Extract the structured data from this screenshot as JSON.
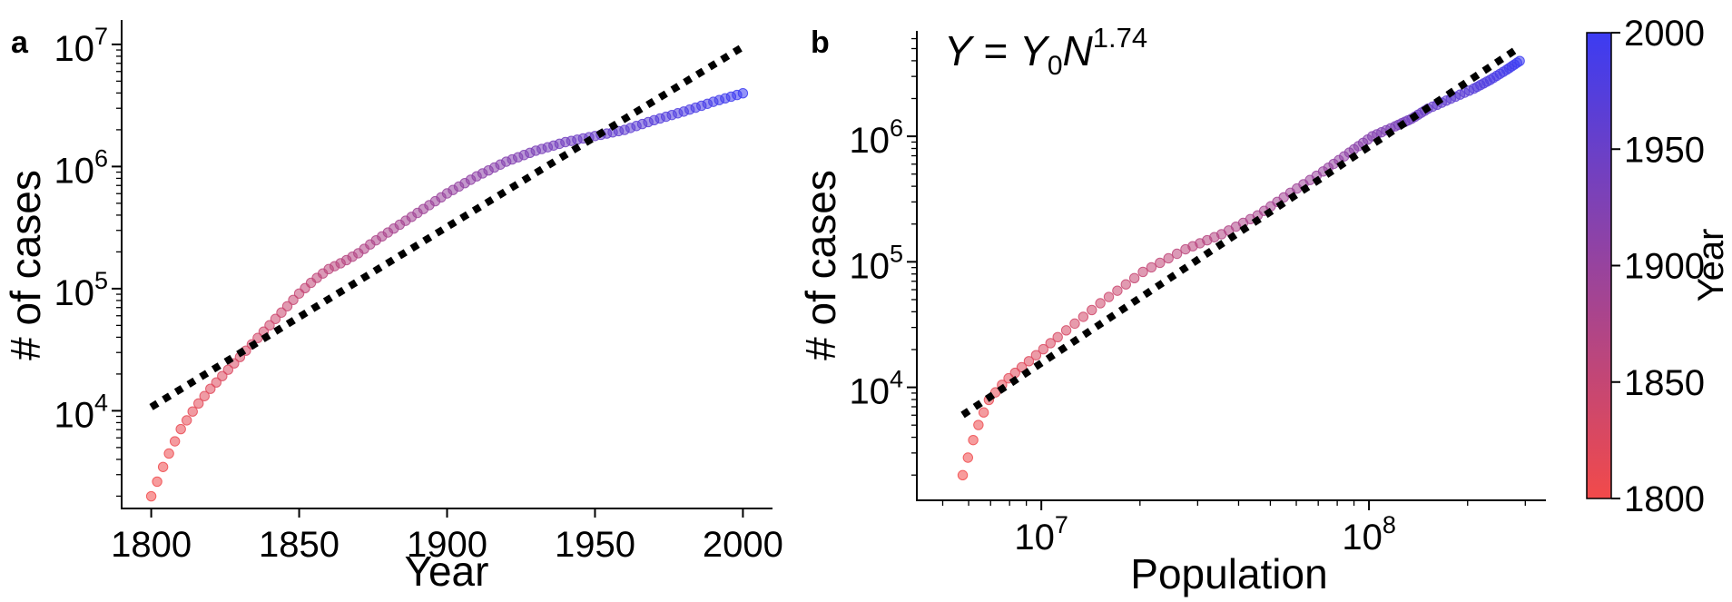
{
  "chart_data": [
    {
      "panel": "a",
      "type": "scatter",
      "title": "",
      "xlabel": "Year",
      "ylabel": "# of cases",
      "x_scale": "linear",
      "y_scale": "log",
      "xlim": [
        1790,
        2010
      ],
      "ylim_log10": [
        3.2,
        7.2
      ],
      "x_ticks": [
        {
          "value": 1800,
          "label": "1800"
        },
        {
          "value": 1850,
          "label": "1850"
        },
        {
          "value": 1900,
          "label": "1900"
        },
        {
          "value": 1950,
          "label": "1950"
        },
        {
          "value": 2000,
          "label": "2000"
        }
      ],
      "y_ticks": [
        {
          "log10": 4,
          "base": "10",
          "exp": "4"
        },
        {
          "log10": 5,
          "base": "10",
          "exp": "5"
        },
        {
          "log10": 6,
          "base": "10",
          "exp": "6"
        },
        {
          "log10": 7,
          "base": "10",
          "exp": "7"
        }
      ],
      "series": [
        {
          "name": "cases",
          "x_start": 1800,
          "x_end": 2000,
          "x_step": 2,
          "curve": {
            "x": [
              1800,
              1805,
              1810,
              1815,
              1820,
              1825,
              1830,
              1835,
              1840,
              1845,
              1850,
              1855,
              1860,
              1865,
              1870,
              1875,
              1880,
              1890,
              1900,
              1910,
              1920,
              1930,
              1940,
              1950,
              1960,
              1970,
              1980,
              1990,
              2000
            ],
            "log10_y": [
              3.3,
              3.6,
              3.85,
              4.03,
              4.18,
              4.31,
              4.44,
              4.57,
              4.7,
              4.83,
              4.96,
              5.07,
              5.16,
              5.22,
              5.29,
              5.38,
              5.46,
              5.62,
              5.78,
              5.92,
              6.04,
              6.13,
              6.2,
              6.25,
              6.3,
              6.38,
              6.45,
              6.53,
              6.6
            ]
          }
        },
        {
          "name": "fit",
          "style": "dotted",
          "x": [
            1800,
            2000
          ],
          "log10_y": [
            4.03,
            6.98
          ]
        }
      ]
    },
    {
      "panel": "b",
      "type": "scatter",
      "title": "",
      "xlabel": "Population",
      "ylabel": "# of cases",
      "x_scale": "log",
      "y_scale": "log",
      "xlim_log10": [
        6.62,
        8.54
      ],
      "ylim_log10": [
        3.1,
        6.84
      ],
      "annotation": {
        "lhs": "Y",
        "eq": " = ",
        "y0": "Y",
        "y0_sub": "0",
        "n": "N",
        "exponent": "1.74"
      },
      "x_ticks": [
        {
          "log10": 7,
          "base": "10",
          "exp": "7"
        },
        {
          "log10": 8,
          "base": "10",
          "exp": "8"
        }
      ],
      "y_ticks": [
        {
          "log10": 4,
          "base": "10",
          "exp": "4"
        },
        {
          "log10": 5,
          "base": "10",
          "exp": "5"
        },
        {
          "log10": 6,
          "base": "10",
          "exp": "6"
        }
      ],
      "series": [
        {
          "name": "cases",
          "year_start": 1800,
          "year_end": 2000,
          "year_step": 2,
          "curve": {
            "year": [
              1800,
              1805,
              1810,
              1815,
              1820,
              1830,
              1840,
              1850,
              1860,
              1870,
              1880,
              1890,
              1900,
              1910,
              1920,
              1930,
              1940,
              1950,
              1960,
              1970,
              1980,
              1990,
              2000
            ],
            "log10_x": [
              6.76,
              6.8,
              6.84,
              6.89,
              6.94,
              7.05,
              7.18,
              7.31,
              7.44,
              7.55,
              7.66,
              7.76,
              7.86,
              7.94,
              8.01,
              8.08,
              8.13,
              8.18,
              8.25,
              8.32,
              8.37,
              8.42,
              8.46
            ],
            "log10_y": [
              3.3,
              3.65,
              3.9,
              4.05,
              4.16,
              4.4,
              4.67,
              4.92,
              5.1,
              5.22,
              5.37,
              5.55,
              5.72,
              5.87,
              6.0,
              6.08,
              6.14,
              6.22,
              6.3,
              6.38,
              6.45,
              6.53,
              6.6
            ]
          }
        },
        {
          "name": "fit",
          "style": "dotted",
          "log10_x": [
            6.76,
            8.46
          ],
          "log10_y": [
            3.78,
            6.71
          ]
        }
      ]
    }
  ],
  "panels": {
    "a": {
      "label": "a"
    },
    "b": {
      "label": "b"
    }
  },
  "colorbar": {
    "label": "Year",
    "min": 1800,
    "max": 2000,
    "ticks": [
      "1800",
      "1850",
      "1900",
      "1950",
      "2000"
    ],
    "color_low": "#f24a4a",
    "color_high": "#3c3cf2"
  },
  "colors": {
    "fit_line": "#000000",
    "marker_alpha": 0.55
  }
}
